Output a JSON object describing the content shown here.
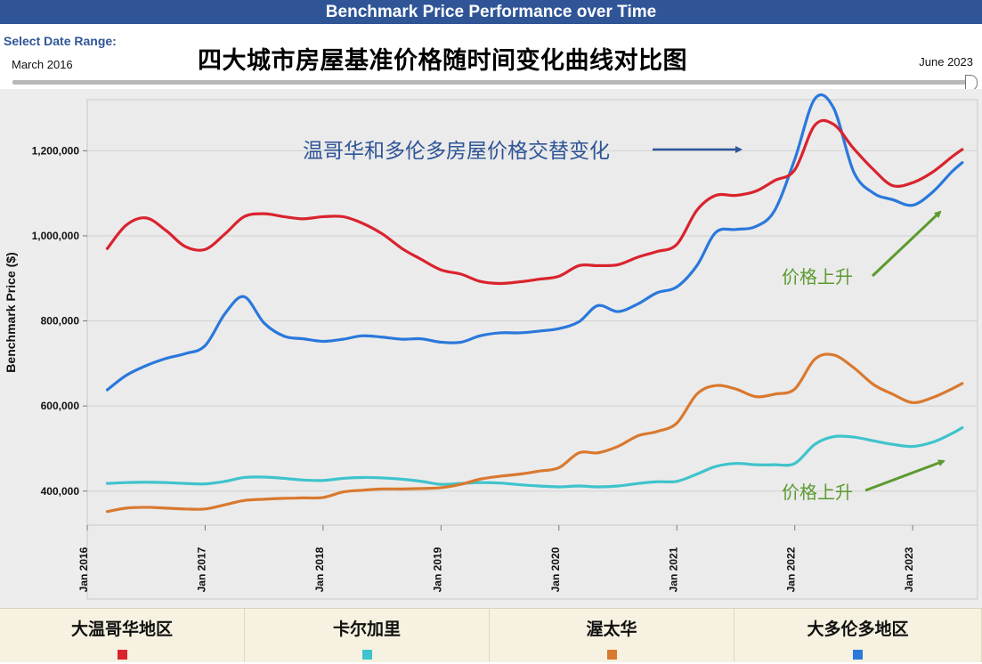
{
  "header": {
    "title": "Benchmark Price Performance over Time",
    "date_range_label": "Select Date Range:",
    "start": "March 2016",
    "end": "June 2023"
  },
  "cn_title": "四大城市房屋基准价格随时间变化曲线对比图",
  "colors": {
    "vancouver": "#d9232d",
    "calgary": "#3fc3cc",
    "ottawa": "#d9792f",
    "toronto": "#2a78dc",
    "annotation_blue": "#2f5597",
    "annotation_green": "#5c9a2f"
  },
  "annotations": {
    "swap": "温哥华和多伦多房屋价格交替变化",
    "rise1": "价格上升",
    "rise2": "价格上升"
  },
  "chart_data": {
    "type": "line",
    "title": "Benchmark Price Performance over Time",
    "ylabel": "Benchmark Price ($)",
    "xlabel": "",
    "ylim": [
      320000,
      1320000
    ],
    "yticks": [
      400000,
      600000,
      800000,
      1000000,
      1200000
    ],
    "ytick_labels": [
      "400,000",
      "600,000",
      "800,000",
      "1,000,000",
      "1,200,000"
    ],
    "xlim": [
      2016.0,
      2023.55
    ],
    "xticks": [
      2016,
      2017,
      2018,
      2019,
      2020,
      2021,
      2022,
      2023
    ],
    "xtick_labels": [
      "Jan 2016",
      "Jan 2017",
      "Jan 2018",
      "Jan 2019",
      "Jan 2020",
      "Jan 2021",
      "Jan 2022",
      "Jan 2023"
    ],
    "grid": "horizontal",
    "legend_position": "bottom",
    "x": [
      2016.17,
      2016.33,
      2016.5,
      2016.67,
      2016.83,
      2017.0,
      2017.17,
      2017.33,
      2017.5,
      2017.67,
      2017.83,
      2018.0,
      2018.17,
      2018.33,
      2018.5,
      2018.67,
      2018.83,
      2019.0,
      2019.17,
      2019.33,
      2019.5,
      2019.67,
      2019.83,
      2020.0,
      2020.17,
      2020.33,
      2020.5,
      2020.67,
      2020.83,
      2021.0,
      2021.17,
      2021.33,
      2021.5,
      2021.67,
      2021.83,
      2022.0,
      2022.17,
      2022.33,
      2022.5,
      2022.67,
      2022.83,
      2023.0,
      2023.17,
      2023.33,
      2023.42
    ],
    "series": [
      {
        "name": "大温哥华地区",
        "color_key": "vancouver",
        "values": [
          970000,
          1025000,
          1042000,
          1012000,
          975000,
          968000,
          1005000,
          1045000,
          1052000,
          1045000,
          1040000,
          1045000,
          1045000,
          1030000,
          1005000,
          970000,
          945000,
          920000,
          910000,
          893000,
          888000,
          892000,
          898000,
          905000,
          930000,
          930000,
          932000,
          950000,
          963000,
          980000,
          1060000,
          1095000,
          1095000,
          1105000,
          1130000,
          1155000,
          1260000,
          1262000,
          1205000,
          1155000,
          1118000,
          1125000,
          1150000,
          1185000,
          1203000
        ]
      },
      {
        "name": "卡尔加里",
        "color_key": "calgary",
        "values": [
          418000,
          420000,
          421000,
          420000,
          418000,
          417000,
          423000,
          432000,
          433000,
          430000,
          426000,
          425000,
          430000,
          432000,
          431000,
          428000,
          423000,
          416000,
          418000,
          420000,
          419000,
          415000,
          412000,
          410000,
          412000,
          410000,
          412000,
          418000,
          422000,
          423000,
          440000,
          458000,
          465000,
          462000,
          462000,
          465000,
          510000,
          528000,
          527000,
          518000,
          510000,
          505000,
          515000,
          535000,
          549000
        ]
      },
      {
        "name": "渥太华",
        "color_key": "ottawa",
        "values": [
          352000,
          360000,
          362000,
          360000,
          358000,
          358000,
          368000,
          378000,
          381000,
          383000,
          384000,
          385000,
          398000,
          402000,
          405000,
          405000,
          406000,
          408000,
          416000,
          428000,
          435000,
          440000,
          447000,
          455000,
          490000,
          490000,
          505000,
          530000,
          540000,
          560000,
          628000,
          648000,
          640000,
          622000,
          628000,
          640000,
          710000,
          720000,
          690000,
          650000,
          628000,
          608000,
          620000,
          640000,
          653000
        ]
      },
      {
        "name": "大多伦多地区",
        "color_key": "toronto",
        "values": [
          638000,
          672000,
          695000,
          712000,
          723000,
          742000,
          818000,
          857000,
          795000,
          764000,
          758000,
          752000,
          757000,
          765000,
          762000,
          757000,
          758000,
          750000,
          750000,
          765000,
          772000,
          772000,
          776000,
          782000,
          798000,
          836000,
          822000,
          840000,
          866000,
          880000,
          930000,
          1008000,
          1015000,
          1022000,
          1060000,
          1180000,
          1322000,
          1300000,
          1150000,
          1100000,
          1085000,
          1072000,
          1103000,
          1150000,
          1172000
        ]
      }
    ]
  }
}
